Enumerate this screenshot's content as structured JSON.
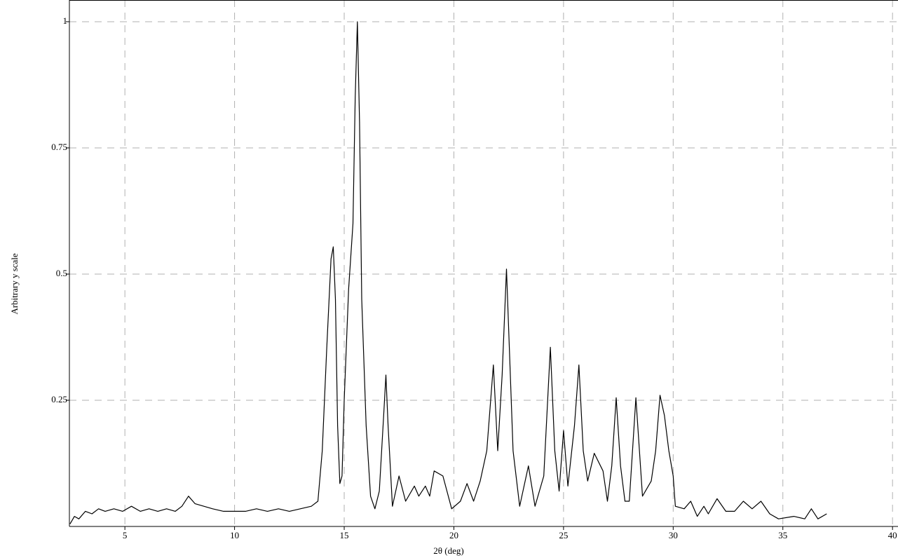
{
  "chart_data": {
    "type": "line",
    "xlabel": "2θ (deg)",
    "ylabel": "Arbitrary y scale",
    "xlim": [
      2.47,
      40.25
    ],
    "ylim": [
      0,
      1.043
    ],
    "xticks": [
      5,
      10,
      15,
      20,
      25,
      30,
      35,
      40
    ],
    "yticks": [
      0.25,
      0.5,
      0.75,
      1
    ],
    "grid": true,
    "series": [
      {
        "color": "#000000",
        "x": [
          2.5,
          2.7,
          2.9,
          3.2,
          3.5,
          3.8,
          4.1,
          4.5,
          4.9,
          5.3,
          5.7,
          6.1,
          6.5,
          6.9,
          7.3,
          7.6,
          7.9,
          8.2,
          8.6,
          9.0,
          9.5,
          10.0,
          10.5,
          11.0,
          11.5,
          12.0,
          12.5,
          13.0,
          13.5,
          13.8,
          14.0,
          14.2,
          14.4,
          14.5,
          14.6,
          14.7,
          14.8,
          14.9,
          15.0,
          15.2,
          15.4,
          15.5,
          15.6,
          15.7,
          15.8,
          16.0,
          16.2,
          16.4,
          16.6,
          16.8,
          16.9,
          17.0,
          17.2,
          17.5,
          17.8,
          18.2,
          18.4,
          18.7,
          18.9,
          19.1,
          19.5,
          19.9,
          20.3,
          20.6,
          20.9,
          21.2,
          21.5,
          21.8,
          22.0,
          22.2,
          22.4,
          22.7,
          23.0,
          23.4,
          23.7,
          24.1,
          24.4,
          24.6,
          24.8,
          25.0,
          25.2,
          25.5,
          25.7,
          25.9,
          26.1,
          26.4,
          26.8,
          27.0,
          27.2,
          27.4,
          27.6,
          27.8,
          28.0,
          28.3,
          28.6,
          29.0,
          29.2,
          29.4,
          29.6,
          29.8,
          30.0,
          30.1,
          30.5,
          30.8,
          31.1,
          31.4,
          31.6,
          32.0,
          32.4,
          32.8,
          33.2,
          33.6,
          34.0,
          34.4,
          34.8,
          35.5,
          36.0,
          36.3,
          36.6,
          37.0
        ],
        "values": [
          0.005,
          0.02,
          0.015,
          0.03,
          0.025,
          0.035,
          0.03,
          0.035,
          0.03,
          0.04,
          0.03,
          0.035,
          0.03,
          0.035,
          0.03,
          0.04,
          0.06,
          0.045,
          0.04,
          0.035,
          0.03,
          0.03,
          0.03,
          0.035,
          0.03,
          0.035,
          0.03,
          0.035,
          0.04,
          0.05,
          0.15,
          0.35,
          0.53,
          0.554,
          0.45,
          0.2,
          0.085,
          0.1,
          0.25,
          0.47,
          0.6,
          0.85,
          1.0,
          0.8,
          0.45,
          0.2,
          0.06,
          0.035,
          0.07,
          0.22,
          0.3,
          0.2,
          0.04,
          0.1,
          0.05,
          0.08,
          0.06,
          0.08,
          0.06,
          0.11,
          0.1,
          0.035,
          0.05,
          0.085,
          0.05,
          0.09,
          0.15,
          0.32,
          0.15,
          0.3,
          0.51,
          0.15,
          0.04,
          0.12,
          0.04,
          0.1,
          0.355,
          0.15,
          0.07,
          0.19,
          0.08,
          0.2,
          0.32,
          0.15,
          0.09,
          0.145,
          0.11,
          0.05,
          0.12,
          0.255,
          0.12,
          0.05,
          0.05,
          0.255,
          0.06,
          0.09,
          0.15,
          0.26,
          0.22,
          0.15,
          0.1,
          0.04,
          0.035,
          0.05,
          0.02,
          0.04,
          0.025,
          0.055,
          0.03,
          0.03,
          0.05,
          0.035,
          0.05,
          0.025,
          0.015,
          0.02,
          0.015,
          0.035,
          0.015,
          0.025
        ]
      }
    ]
  }
}
